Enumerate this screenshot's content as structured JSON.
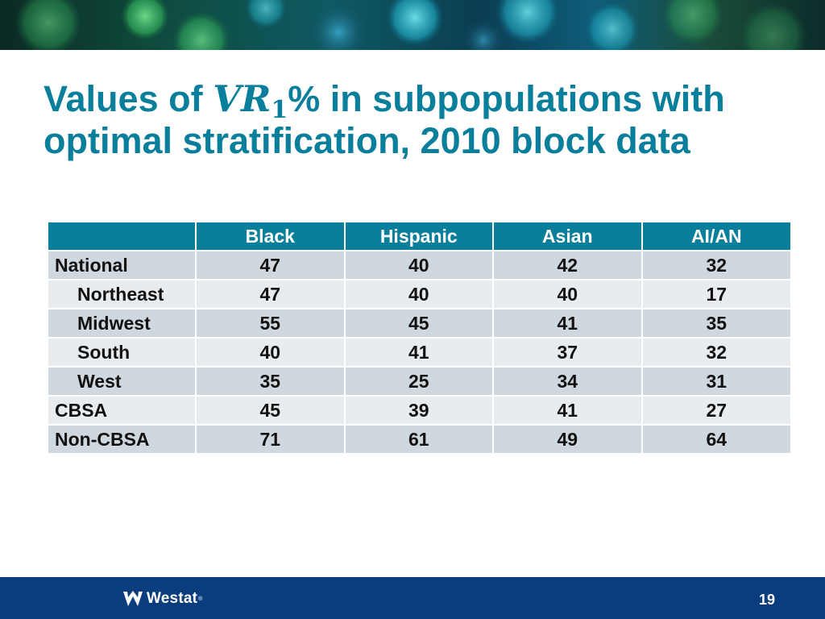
{
  "slide": {
    "title_prefix": "Values of ",
    "title_math_main": "VR",
    "title_math_sub": "1",
    "title_suffix": "% in subpopulations with optimal stratification, 2010 block data"
  },
  "table": {
    "headers": [
      "",
      "Black",
      "Hispanic",
      "Asian",
      "AI/AN"
    ],
    "rows": [
      {
        "label": "National",
        "values": [
          "47",
          "40",
          "42",
          "32"
        ]
      },
      {
        "label": "Northeast",
        "values": [
          "47",
          "40",
          "40",
          "17"
        ]
      },
      {
        "label": "Midwest",
        "values": [
          "55",
          "45",
          "41",
          "35"
        ]
      },
      {
        "label": "South",
        "values": [
          "40",
          "41",
          "37",
          "32"
        ]
      },
      {
        "label": "West",
        "values": [
          "35",
          "25",
          "34",
          "31"
        ]
      },
      {
        "label": "CBSA",
        "values": [
          "45",
          "39",
          "41",
          "27"
        ]
      },
      {
        "label": "Non-CBSA",
        "values": [
          "71",
          "61",
          "49",
          "64"
        ]
      }
    ]
  },
  "footer": {
    "logo_text": "Westat",
    "logo_registered": "®",
    "page_number": "19"
  },
  "colors": {
    "title": "#0a7f9b",
    "header_bg": "#0a7f9b",
    "row_dark": "#d0d8df",
    "row_light": "#e9ecef",
    "footer_bg": "#0a3d7e"
  }
}
